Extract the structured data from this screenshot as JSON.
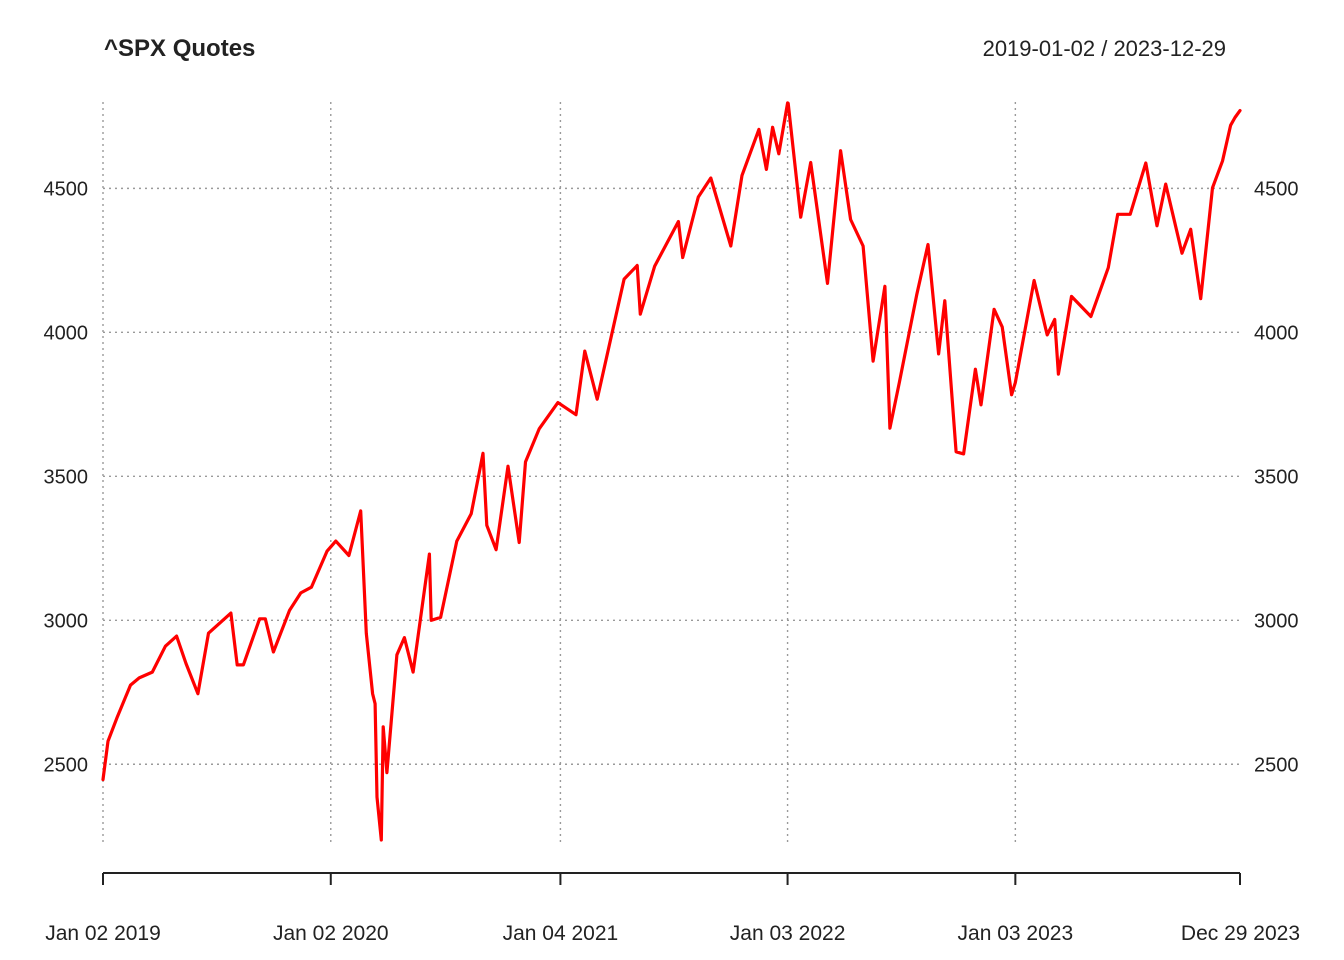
{
  "chart_data": {
    "type": "line",
    "title": "^SPX Quotes",
    "subtitle": "2019-01-02 / 2023-12-29",
    "xlabel": "",
    "ylabel": "",
    "ylim": [
      2230,
      4800
    ],
    "xlim": [
      "2019-01-02",
      "2023-12-29"
    ],
    "grid": true,
    "y_ticks": [
      2500,
      3000,
      3500,
      4000,
      4500
    ],
    "x_ticks": [
      {
        "date": "2019-01-02",
        "label": "Jan 02 2019"
      },
      {
        "date": "2020-01-02",
        "label": "Jan 02 2020"
      },
      {
        "date": "2021-01-04",
        "label": "Jan 04 2021"
      },
      {
        "date": "2022-01-03",
        "label": "Jan 03 2022"
      },
      {
        "date": "2023-01-03",
        "label": "Jan 03 2023"
      },
      {
        "date": "2023-12-29",
        "label": "Dec 29 2023"
      }
    ],
    "series": [
      {
        "color": "#ff0000",
        "x": [
          "2019-01-02",
          "2019-01-10",
          "2019-01-25",
          "2019-02-15",
          "2019-03-01",
          "2019-03-22",
          "2019-04-12",
          "2019-04-30",
          "2019-05-15",
          "2019-06-03",
          "2019-06-20",
          "2019-07-26",
          "2019-08-05",
          "2019-08-15",
          "2019-09-10",
          "2019-09-19",
          "2019-10-02",
          "2019-10-28",
          "2019-11-15",
          "2019-12-02",
          "2019-12-27",
          "2020-01-10",
          "2020-01-31",
          "2020-02-19",
          "2020-02-28",
          "2020-03-09",
          "2020-03-13",
          "2020-03-16",
          "2020-03-23",
          "2020-03-26",
          "2020-04-01",
          "2020-04-17",
          "2020-04-29",
          "2020-05-13",
          "2020-06-08",
          "2020-06-11",
          "2020-06-26",
          "2020-07-22",
          "2020-08-14",
          "2020-09-02",
          "2020-09-08",
          "2020-09-23",
          "2020-10-12",
          "2020-10-30",
          "2020-11-09",
          "2020-12-01",
          "2020-12-31",
          "2021-01-29",
          "2021-02-12",
          "2021-03-04",
          "2021-04-16",
          "2021-05-07",
          "2021-05-12",
          "2021-06-04",
          "2021-07-12",
          "2021-07-19",
          "2021-08-13",
          "2021-09-02",
          "2021-10-04",
          "2021-10-22",
          "2021-11-18",
          "2021-11-30",
          "2021-12-10",
          "2021-12-20",
          "2022-01-03",
          "2022-01-04",
          "2022-01-24",
          "2022-02-09",
          "2022-03-08",
          "2022-03-29",
          "2022-04-14",
          "2022-05-04",
          "2022-05-20",
          "2022-06-08",
          "2022-06-16",
          "2022-07-01",
          "2022-07-29",
          "2022-08-16",
          "2022-09-02",
          "2022-09-12",
          "2022-09-30",
          "2022-10-12",
          "2022-10-31",
          "2022-11-09",
          "2022-11-30",
          "2022-12-13",
          "2022-12-28",
          "2023-01-03",
          "2023-02-02",
          "2023-02-23",
          "2023-03-07",
          "2023-03-13",
          "2023-04-03",
          "2023-05-04",
          "2023-06-01",
          "2023-06-16",
          "2023-07-06",
          "2023-07-31",
          "2023-08-18",
          "2023-09-01",
          "2023-09-27",
          "2023-10-11",
          "2023-10-27",
          "2023-11-15",
          "2023-12-01",
          "2023-12-14",
          "2023-12-21",
          "2023-12-29"
        ],
        "y": [
          2447,
          2580,
          2665,
          2775,
          2800,
          2820,
          2910,
          2945,
          2850,
          2745,
          2955,
          3025,
          2845,
          2845,
          3005,
          3005,
          2890,
          3035,
          3095,
          3115,
          3240,
          3275,
          3225,
          3380,
          2955,
          2745,
          2710,
          2386,
          2237,
          2630,
          2471,
          2880,
          2940,
          2820,
          3230,
          3000,
          3010,
          3275,
          3370,
          3580,
          3330,
          3245,
          3535,
          3270,
          3550,
          3665,
          3756,
          3714,
          3935,
          3768,
          4185,
          4232,
          4063,
          4230,
          4385,
          4260,
          4470,
          4536,
          4300,
          4545,
          4705,
          4566,
          4712,
          4620,
          4797,
          4795,
          4400,
          4590,
          4170,
          4631,
          4392,
          4300,
          3900,
          4160,
          3667,
          3825,
          4130,
          4305,
          3925,
          4110,
          3585,
          3578,
          3872,
          3748,
          4080,
          4019,
          3783,
          3825,
          4180,
          3991,
          4045,
          3855,
          4125,
          4055,
          4225,
          4410,
          4410,
          4588,
          4370,
          4515,
          4275,
          4358,
          4117,
          4502,
          4595,
          4719,
          4746,
          4770
        ]
      }
    ]
  }
}
